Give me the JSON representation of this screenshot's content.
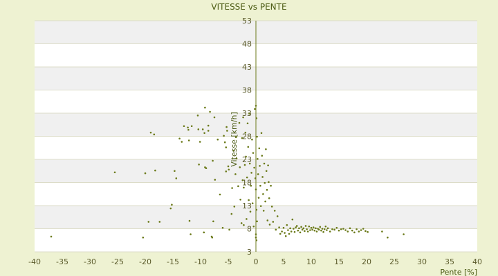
{
  "chart_data": {
    "type": "scatter",
    "title": "VITESSE vs PENTE",
    "xlabel": "Pente [%]",
    "ylabel": "Vitesse [km/h]",
    "xlim": [
      -40,
      40
    ],
    "ylim": [
      3,
      53
    ],
    "x_ticks": [
      -40,
      -35,
      -30,
      -25,
      -20,
      -15,
      -10,
      -5,
      0,
      5,
      10,
      15,
      20,
      25,
      30,
      35,
      40
    ],
    "y_ticks": [
      3,
      8,
      13,
      18,
      23,
      28,
      33,
      38,
      43,
      48,
      53
    ],
    "y_tick_labels": [
      "3",
      "8",
      "13",
      "18",
      "23",
      "28",
      "33",
      "38",
      "43",
      "48",
      "53"
    ],
    "grid": "horizontal bands",
    "legend": "none",
    "colors": {
      "point": "#6b7a1a",
      "axis": "#6b7a1a",
      "band_light": "#ffffff",
      "band_dark": "#f0f0f0",
      "background": "#eef2d2"
    },
    "points": [
      [
        -37,
        6.3
      ],
      [
        -25.5,
        20.2
      ],
      [
        -20,
        20
      ],
      [
        -20.4,
        6.1
      ],
      [
        -19.4,
        9.5
      ],
      [
        -19,
        28.8
      ],
      [
        -18.4,
        28.4
      ],
      [
        -18.2,
        20.6
      ],
      [
        -17.4,
        9.5
      ],
      [
        -15.4,
        12.4
      ],
      [
        -15.2,
        13.2
      ],
      [
        -14.7,
        20.5
      ],
      [
        -14.4,
        18.9
      ],
      [
        -13.8,
        27.5
      ],
      [
        -13.4,
        26.8
      ],
      [
        -13,
        30.2
      ],
      [
        -12.3,
        29.9
      ],
      [
        -12.2,
        29.4
      ],
      [
        -12.1,
        27.1
      ],
      [
        -12,
        9.7
      ],
      [
        -11.8,
        6.8
      ],
      [
        -11.6,
        30.2
      ],
      [
        -10.5,
        32.5
      ],
      [
        -10.4,
        29.5
      ],
      [
        -10.3,
        21.9
      ],
      [
        -10.1,
        26.8
      ],
      [
        -9.6,
        29.5
      ],
      [
        -9.4,
        7.2
      ],
      [
        -9.3,
        28.7
      ],
      [
        -9.2,
        21.3
      ],
      [
        -9.2,
        34.2
      ],
      [
        -9,
        21.1
      ],
      [
        -8.6,
        30.3
      ],
      [
        -8.6,
        29.2
      ],
      [
        -8.3,
        33.3
      ],
      [
        -8,
        6.3
      ],
      [
        -7.9,
        6.1
      ],
      [
        -7.7,
        9.6
      ],
      [
        -7.8,
        22.7
      ],
      [
        -7.5,
        32.1
      ],
      [
        -7.4,
        18.6
      ],
      [
        -6.9,
        27.3
      ],
      [
        -6.5,
        15.4
      ],
      [
        -6,
        8.2
      ],
      [
        -5.8,
        28.1
      ],
      [
        -5.6,
        26.7
      ],
      [
        -5.4,
        25.6
      ],
      [
        -5.4,
        20.4
      ],
      [
        -5.3,
        30
      ],
      [
        -5.2,
        29.2
      ],
      [
        -5,
        21.5
      ],
      [
        -4.9,
        20.8
      ],
      [
        -4.8,
        7.8
      ],
      [
        -4.4,
        11.2
      ],
      [
        -4.3,
        16.8
      ],
      [
        -4,
        24.9
      ],
      [
        -3.9,
        12.8
      ],
      [
        -3.7,
        19.8
      ],
      [
        -3.6,
        27.8
      ],
      [
        -3.5,
        23.2
      ],
      [
        -3.2,
        17.2
      ],
      [
        -3,
        30.9
      ],
      [
        -2.9,
        21.3
      ],
      [
        -2.8,
        14.3
      ],
      [
        -2.6,
        9.2
      ],
      [
        -2.5,
        27.6
      ],
      [
        -2.4,
        18.5
      ],
      [
        -2.3,
        32.1
      ],
      [
        -2.2,
        16.9
      ],
      [
        -2.2,
        8.8
      ],
      [
        -2,
        21.8
      ],
      [
        -1.9,
        28.8
      ],
      [
        -1.8,
        23.6
      ],
      [
        -1.7,
        10.1
      ],
      [
        -1.6,
        19.1
      ],
      [
        -1.5,
        30.8
      ],
      [
        -1.4,
        25.7
      ],
      [
        -1.3,
        14.2
      ],
      [
        -1.2,
        32.9
      ],
      [
        -1.1,
        22.1
      ],
      [
        -1,
        11.7
      ],
      [
        -0.9,
        17.3
      ],
      [
        -0.8,
        20.1
      ],
      [
        -0.7,
        27.3
      ],
      [
        -0.6,
        13.5
      ],
      [
        -0.5,
        24.4
      ],
      [
        -0.4,
        8.5
      ],
      [
        -0.3,
        21.2
      ],
      [
        -0.2,
        33.9
      ],
      [
        -0.1,
        18.9
      ],
      [
        0,
        34.6
      ],
      [
        0.1,
        31.9
      ],
      [
        0,
        16.5
      ],
      [
        0.1,
        12.1
      ],
      [
        0.2,
        9.6
      ],
      [
        0,
        6.8
      ],
      [
        0,
        6.1
      ],
      [
        0.1,
        5.5
      ],
      [
        0.2,
        27.9
      ],
      [
        0.3,
        23.1
      ],
      [
        0.4,
        19.8
      ],
      [
        0.5,
        14.7
      ],
      [
        0.6,
        25.4
      ],
      [
        0.7,
        21.6
      ],
      [
        0.8,
        17.3
      ],
      [
        0.9,
        12.9
      ],
      [
        1,
        28.7
      ],
      [
        1.1,
        23.8
      ],
      [
        1.2,
        19.2
      ],
      [
        1.3,
        15.5
      ],
      [
        1.4,
        11.9
      ],
      [
        1.5,
        22.1
      ],
      [
        1.6,
        17.9
      ],
      [
        1.7,
        13.9
      ],
      [
        1.8,
        25.2
      ],
      [
        1.9,
        20.5
      ],
      [
        2,
        16.4
      ],
      [
        2.1,
        9.8
      ],
      [
        2.2,
        21.7
      ],
      [
        2.3,
        18.1
      ],
      [
        2.4,
        14.6
      ],
      [
        2.5,
        8.9
      ],
      [
        2.7,
        17.3
      ],
      [
        2.9,
        12.8
      ],
      [
        3.1,
        9.5
      ],
      [
        3.4,
        11.9
      ],
      [
        3.6,
        7.8
      ],
      [
        3.9,
        10.7
      ],
      [
        4.2,
        8.3
      ],
      [
        4.4,
        6.9
      ],
      [
        4.7,
        7.4
      ],
      [
        5,
        8.2
      ],
      [
        5.2,
        7.1
      ],
      [
        5.4,
        6.4
      ],
      [
        5.6,
        8.8
      ],
      [
        5.8,
        7.7
      ],
      [
        6,
        6.9
      ],
      [
        6.2,
        8.1
      ],
      [
        6.4,
        7.4
      ],
      [
        6.6,
        10
      ],
      [
        6.8,
        8
      ],
      [
        7,
        7.3
      ],
      [
        7.2,
        8.3
      ],
      [
        7.4,
        8.6
      ],
      [
        7.6,
        7.6
      ],
      [
        7.8,
        8.1
      ],
      [
        8,
        7.2
      ],
      [
        8.2,
        8.4
      ],
      [
        8.4,
        7.8
      ],
      [
        8.6,
        8.1
      ],
      [
        8.8,
        7.5
      ],
      [
        9,
        8.6
      ],
      [
        9.2,
        7.9
      ],
      [
        9.4,
        7.4
      ],
      [
        9.6,
        8.5
      ],
      [
        9.8,
        7.7
      ],
      [
        10,
        8.2
      ],
      [
        10.2,
        7.8
      ],
      [
        10.4,
        8.3
      ],
      [
        10.6,
        7.6
      ],
      [
        10.8,
        8.1
      ],
      [
        11,
        7.4
      ],
      [
        11.2,
        8
      ],
      [
        11.4,
        7.8
      ],
      [
        11.6,
        8.4
      ],
      [
        11.8,
        7.6
      ],
      [
        12,
        8
      ],
      [
        12.2,
        7.3
      ],
      [
        12.4,
        7.9
      ],
      [
        12.6,
        8.5
      ],
      [
        12.8,
        7.7
      ],
      [
        13,
        8.1
      ],
      [
        13.4,
        7.4
      ],
      [
        13.8,
        7.9
      ],
      [
        14.2,
        7.8
      ],
      [
        14.6,
        8.2
      ],
      [
        15,
        7.6
      ],
      [
        15.4,
        7.9
      ],
      [
        15.8,
        8
      ],
      [
        16.2,
        7.7
      ],
      [
        16.6,
        7.4
      ],
      [
        17,
        8.1
      ],
      [
        17.4,
        7.6
      ],
      [
        17.8,
        7.2
      ],
      [
        18.2,
        7.9
      ],
      [
        18.6,
        7.4
      ],
      [
        19,
        7.7
      ],
      [
        19.4,
        8
      ],
      [
        19.8,
        7.5
      ],
      [
        20.2,
        7.3
      ],
      [
        22.8,
        7.4
      ],
      [
        23.8,
        6.1
      ],
      [
        26.7,
        6.8
      ]
    ]
  }
}
